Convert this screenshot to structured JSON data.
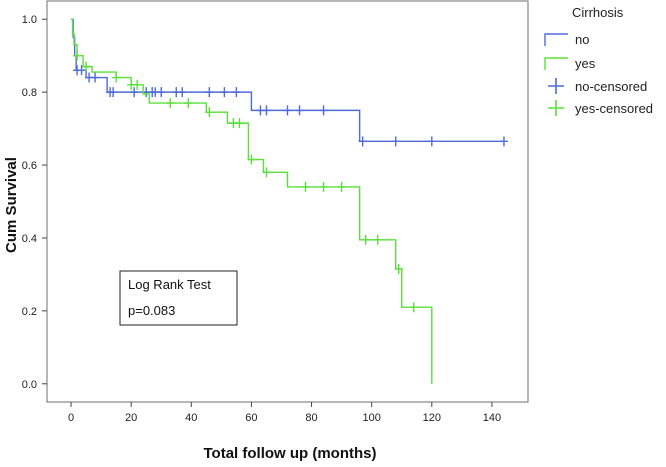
{
  "chart_data": {
    "type": "line",
    "subtype": "kaplan-meier",
    "title": "",
    "xlabel": "Total follow up (months)",
    "ylabel": "Cum Survival",
    "xlim": [
      -8,
      152
    ],
    "ylim": [
      -0.05,
      1.05
    ],
    "x_ticks": [
      0,
      20,
      40,
      60,
      80,
      100,
      120,
      140
    ],
    "y_ticks": [
      0.0,
      0.2,
      0.4,
      0.6,
      0.8,
      1.0
    ],
    "x_tick_labels": [
      "0",
      "20",
      "40",
      "60",
      "80",
      "100",
      "120",
      "140"
    ],
    "y_tick_labels": [
      "0.0",
      "0.2",
      "0.4",
      "0.6",
      "0.8",
      "1.0"
    ],
    "grid": false,
    "legend_title": "Cirrhosis",
    "legend_position": "right, outside plot",
    "series": [
      {
        "name": "no",
        "color": "#4F6BD8",
        "steps": [
          [
            0,
            1.0
          ],
          [
            0.7,
            0.95
          ],
          [
            1.2,
            0.9
          ],
          [
            1.7,
            0.86
          ],
          [
            5,
            0.84
          ],
          [
            12,
            0.8
          ],
          [
            60,
            0.75
          ],
          [
            96,
            0.665
          ],
          [
            144,
            0.665
          ]
        ],
        "censored": [
          [
            2,
            0.86
          ],
          [
            3.5,
            0.86
          ],
          [
            6,
            0.84
          ],
          [
            8,
            0.84
          ],
          [
            13,
            0.8
          ],
          [
            14,
            0.8
          ],
          [
            21,
            0.8
          ],
          [
            25,
            0.8
          ],
          [
            27,
            0.8
          ],
          [
            28,
            0.8
          ],
          [
            30,
            0.8
          ],
          [
            35,
            0.8
          ],
          [
            37,
            0.8
          ],
          [
            46,
            0.8
          ],
          [
            51,
            0.8
          ],
          [
            55,
            0.8
          ],
          [
            63,
            0.75
          ],
          [
            65,
            0.75
          ],
          [
            72,
            0.75
          ],
          [
            76,
            0.75
          ],
          [
            84,
            0.75
          ],
          [
            97,
            0.665
          ],
          [
            108,
            0.665
          ],
          [
            120,
            0.665
          ],
          [
            144,
            0.665
          ]
        ]
      },
      {
        "name": "yes",
        "color": "#5AE03A",
        "steps": [
          [
            0,
            1.0
          ],
          [
            0.5,
            0.96
          ],
          [
            1,
            0.93
          ],
          [
            2,
            0.9
          ],
          [
            4,
            0.87
          ],
          [
            7,
            0.855
          ],
          [
            15,
            0.84
          ],
          [
            20,
            0.82
          ],
          [
            24,
            0.795
          ],
          [
            26,
            0.77
          ],
          [
            45,
            0.745
          ],
          [
            52,
            0.715
          ],
          [
            59,
            0.615
          ],
          [
            64,
            0.58
          ],
          [
            72,
            0.54
          ],
          [
            96,
            0.395
          ],
          [
            108,
            0.315
          ],
          [
            110,
            0.21
          ],
          [
            120,
            0.0
          ]
        ],
        "censored": [
          [
            2,
            0.9
          ],
          [
            5,
            0.87
          ],
          [
            15,
            0.84
          ],
          [
            20,
            0.82
          ],
          [
            22,
            0.82
          ],
          [
            33,
            0.77
          ],
          [
            39,
            0.77
          ],
          [
            46,
            0.745
          ],
          [
            54,
            0.715
          ],
          [
            56,
            0.715
          ],
          [
            60,
            0.615
          ],
          [
            65,
            0.58
          ],
          [
            78,
            0.54
          ],
          [
            84,
            0.54
          ],
          [
            90,
            0.54
          ],
          [
            98,
            0.395
          ],
          [
            102,
            0.395
          ],
          [
            109,
            0.315
          ],
          [
            114,
            0.21
          ]
        ]
      }
    ],
    "legend": {
      "title": "Cirrhosis",
      "entries": [
        "no",
        "yes",
        "no-censored",
        "yes-censored"
      ]
    },
    "annotation": {
      "line1": "Log Rank Test",
      "line2": "p=0.083"
    }
  },
  "colors": {
    "no": "#4F6BD8",
    "yes": "#5AE03A",
    "frame": "#444444",
    "plot_border": "#6f6f6f"
  }
}
